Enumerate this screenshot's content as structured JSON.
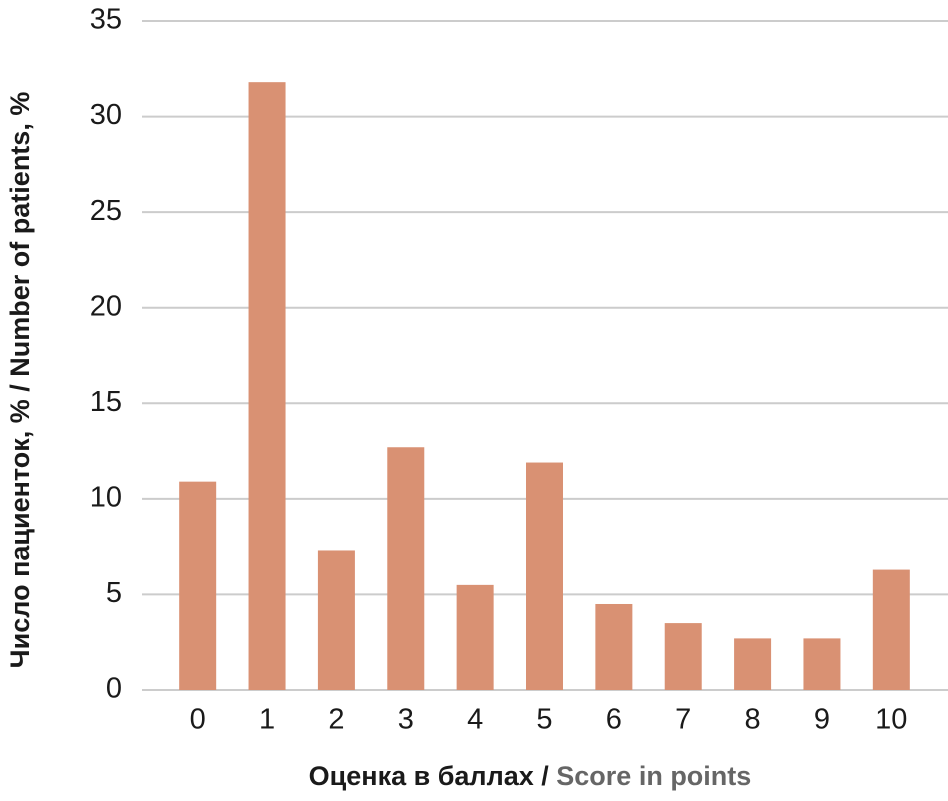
{
  "chart_data": {
    "type": "bar",
    "x_label": [
      "Оценка в баллах /",
      "Score in points"
    ],
    "y_label": "Число пациенток, % / Number of patients, %",
    "categories": [
      "0",
      "1",
      "2",
      "3",
      "4",
      "5",
      "6",
      "7",
      "8",
      "9",
      "10"
    ],
    "values": [
      10.9,
      31.8,
      7.3,
      12.7,
      5.5,
      11.9,
      4.5,
      3.5,
      2.7,
      2.7,
      6.3
    ],
    "color": "#d99173",
    "ylim": [
      0,
      35
    ],
    "yticks": [
      0,
      5,
      10,
      15,
      20,
      25,
      30,
      35
    ],
    "grid": true
  }
}
